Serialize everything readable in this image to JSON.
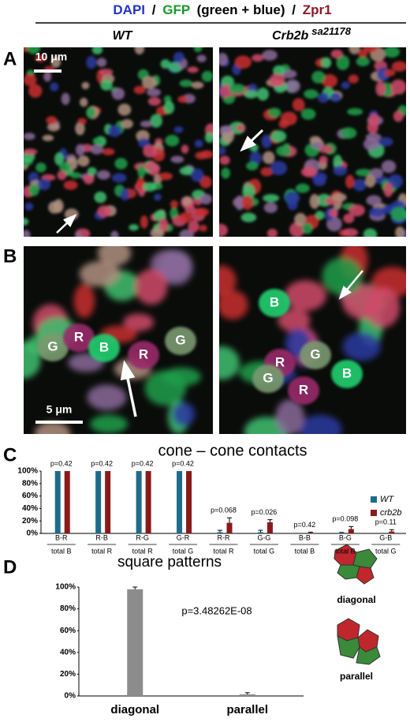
{
  "figure": {
    "header": [
      "DAPI",
      "/",
      "GFP",
      "(green + blue)",
      "/",
      "Zpr1"
    ],
    "column_wt": "WT",
    "column_mutant": "Crb2b",
    "column_mutant_allele": "sa21178",
    "panel_labels": [
      "A",
      "B",
      "C",
      "D"
    ],
    "scale_bars": [
      "10 μm",
      "5 μm"
    ],
    "cell_labels_wt": [
      "G",
      "R",
      "B",
      "R",
      "G"
    ],
    "cell_labels_mutant": [
      "B",
      "R",
      "G",
      "G",
      "R",
      "B"
    ],
    "schematic_labels": [
      "diagonal",
      "parallel"
    ]
  },
  "chart_data": [
    {
      "type": "bar",
      "title": "cone – cone contacts",
      "categories": [
        "B-R",
        "R-B",
        "R-G",
        "G-R",
        "R-R",
        "G-G",
        "B-B",
        "B-G",
        "G-B"
      ],
      "category_totals": [
        "total B",
        "total R",
        "total R",
        "total G",
        "total R",
        "total G",
        "total B",
        "total B",
        "total G"
      ],
      "annotations": [
        "p=0.42",
        "p=0.42",
        "p=0.42",
        "p=0.42",
        "p=0.068",
        "p=0.026",
        "p=0.42",
        "p=0.098",
        "p=0.11"
      ],
      "series": [
        {
          "name": "WT",
          "color": "#1e6b8c",
          "values": [
            100,
            100,
            100,
            100,
            2,
            2,
            0,
            1,
            0
          ],
          "errors": [
            0,
            0,
            0,
            0,
            3,
            3,
            0,
            0.5,
            0
          ]
        },
        {
          "name": "crb2b",
          "color": "#8a1a1a",
          "values": [
            100,
            100,
            100,
            100,
            17,
            18,
            1,
            7,
            3
          ],
          "errors": [
            0,
            0,
            0,
            0,
            8,
            4,
            1,
            4,
            3
          ]
        }
      ],
      "ylim": [
        0,
        100
      ],
      "yticks": [
        {
          "value": 0,
          "label": "0%"
        },
        {
          "value": 20,
          "label": "20%"
        },
        {
          "value": 40,
          "label": "40%"
        },
        {
          "value": 60,
          "label": "60%"
        },
        {
          "value": 80,
          "label": "80%"
        },
        {
          "value": 100,
          "label": "100%"
        }
      ],
      "legend": "right"
    },
    {
      "type": "bar",
      "title": "square patterns",
      "categories": [
        "diagonal",
        "parallel"
      ],
      "values": [
        98,
        1.5
      ],
      "errors": [
        2,
        1.5
      ],
      "color": "#8c8c8c",
      "annotation": "p=3.48262E-08",
      "ylim": [
        0,
        100
      ],
      "yticks": [
        {
          "value": 0,
          "label": "0%"
        },
        {
          "value": 20,
          "label": "20%"
        },
        {
          "value": 40,
          "label": "40%"
        },
        {
          "value": 60,
          "label": "60%"
        },
        {
          "value": 80,
          "label": "80%"
        },
        {
          "value": 100,
          "label": "100%"
        }
      ]
    }
  ]
}
